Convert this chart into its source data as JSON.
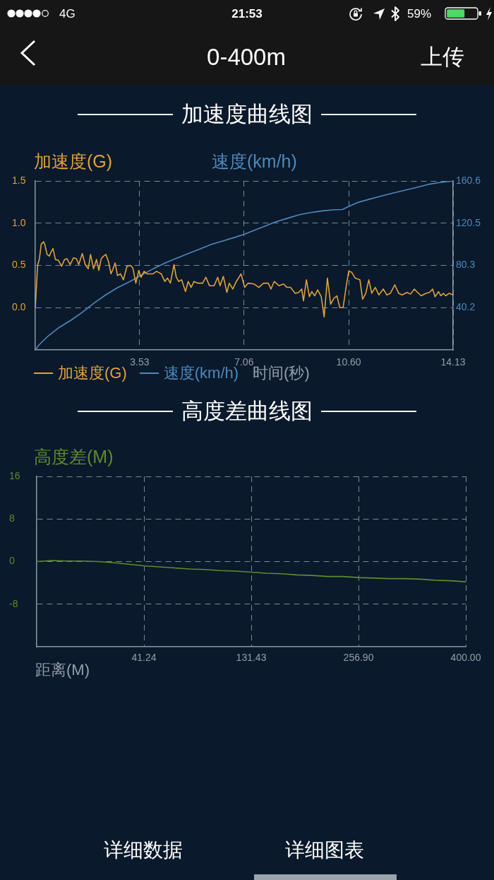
{
  "chart_data": [
    {
      "type": "line",
      "title": "加速度曲线图",
      "ylabel": "加速度(G)",
      "y2label": "速度(km/h)",
      "xlabel": "时间(秒)",
      "legend": "bottom",
      "grid": true,
      "xlim": [
        0,
        14.13
      ],
      "xticks": [
        3.53,
        7.06,
        {
          "value": 10.6,
          "label": "10.60"
        },
        14.13
      ],
      "ylim": [
        -0.5,
        1.5
      ],
      "yticks": [
        {
          "value": 0,
          "label": "0.0"
        },
        0.5,
        {
          "value": 1,
          "label": "1.0"
        },
        1.5
      ],
      "y2lim": [
        0,
        160.6
      ],
      "y2ticks": [
        40.2,
        80.3,
        120.5,
        160.6
      ],
      "series": [
        {
          "name": "加速度(G)",
          "color": "#dfa23b",
          "x": [
            0,
            0.08,
            0.14,
            0.2,
            0.28,
            0.32,
            0.4,
            0.48,
            0.52,
            0.6,
            0.68,
            0.78,
            0.89,
            0.99,
            1.07,
            1.18,
            1.29,
            1.39,
            1.47,
            1.59,
            1.69,
            1.79,
            1.87,
            1.97,
            2.07,
            2.15,
            2.23,
            2.31,
            2.39,
            2.48,
            2.56,
            2.63,
            2.7,
            2.78,
            2.88,
            2.98,
            3.1,
            3.22,
            3.3,
            3.4,
            3.5,
            3.58,
            3.68,
            3.78,
            3.98,
            4.1,
            4.26,
            4.38,
            4.47,
            4.57,
            4.69,
            4.77,
            4.85,
            4.95,
            5.08,
            5.17,
            5.27,
            5.37,
            5.49,
            5.66,
            5.77,
            5.89,
            6.05,
            6.17,
            6.25,
            6.36,
            6.48,
            6.56,
            6.68,
            6.8,
            6.96,
            7.08,
            7.2,
            7.4,
            7.56,
            7.72,
            7.88,
            7.97,
            8.08,
            8.24,
            8.4,
            8.51,
            8.63,
            8.79,
            8.91,
            9.01,
            9.07,
            9.17,
            9.27,
            9.35,
            9.45,
            9.55,
            9.67,
            9.77,
            9.88,
            9.99,
            10.1,
            10.2,
            10.3,
            10.41,
            10.52,
            10.6,
            10.7,
            10.82,
            10.98,
            11.07,
            11.18,
            11.28,
            11.38,
            11.5,
            11.62,
            11.77,
            11.89,
            12.01,
            12.16,
            12.29,
            12.41,
            12.57,
            12.69,
            12.82,
            12.93,
            13.05,
            13.21,
            13.33,
            13.44,
            13.52,
            13.64,
            13.72,
            13.8,
            13.88,
            14.0,
            14.13
          ],
          "values": [
            0,
            0.5,
            0.58,
            0.75,
            0.78,
            0.75,
            0.63,
            0.61,
            0.65,
            0.7,
            0.57,
            0.56,
            0.49,
            0.57,
            0.58,
            0.51,
            0.59,
            0.58,
            0.51,
            0.64,
            0.51,
            0.46,
            0.63,
            0.46,
            0.57,
            0.44,
            0.58,
            0.61,
            0.63,
            0.54,
            0.4,
            0.46,
            0.53,
            0.38,
            0.4,
            0.33,
            0.49,
            0.5,
            0.47,
            0.29,
            0.44,
            0.36,
            0.43,
            0.4,
            0.4,
            0.43,
            0.4,
            0.31,
            0.35,
            0.29,
            0.51,
            0.36,
            0.31,
            0.33,
            0.19,
            0.31,
            0.24,
            0.31,
            0.29,
            0.29,
            0.36,
            0.26,
            0.26,
            0.36,
            0.26,
            0.37,
            0.18,
            0.29,
            0.22,
            0.31,
            0.4,
            0.24,
            0.29,
            0.28,
            0.24,
            0.29,
            0.29,
            0.22,
            0.31,
            0.26,
            0.28,
            0.24,
            0.24,
            0.17,
            0.18,
            0.22,
            0.08,
            0.33,
            0.13,
            0.19,
            0.14,
            0.21,
            0.13,
            -0.11,
            0.35,
            0.04,
            0.11,
            0.14,
            0,
            0,
            0.26,
            0.43,
            0.42,
            0.35,
            0.33,
            0.1,
            0.17,
            0.33,
            0.17,
            0.24,
            0.15,
            0.22,
            0.15,
            0.17,
            0.27,
            0.17,
            0.15,
            0.18,
            0.16,
            0.22,
            0.18,
            0.14,
            0.17,
            0.18,
            0.22,
            0.13,
            0.19,
            0.14,
            0.17,
            0.14,
            0.17,
            0.15
          ]
        },
        {
          "name": "速度(km/h)",
          "color": "#4d89bd",
          "axis": "y2",
          "x": [
            0,
            0.12,
            0.4,
            0.8,
            1.19,
            1.59,
            1.99,
            2.39,
            2.78,
            3.18,
            3.58,
            3.98,
            4.38,
            4.77,
            5.17,
            5.57,
            5.97,
            6.36,
            6.76,
            7.08,
            7.32,
            7.72,
            8.12,
            8.51,
            8.91,
            9.31,
            9.71,
            10.1,
            10.38,
            10.58,
            10.9,
            11.3,
            11.69,
            12.09,
            12.49,
            12.89,
            13.28,
            13.68,
            14.13
          ],
          "values": [
            0,
            4.5,
            12.3,
            21.2,
            27.9,
            35.7,
            44.6,
            52.4,
            59.1,
            64.7,
            70.9,
            77.0,
            82.5,
            87.0,
            91.5,
            95.9,
            100.4,
            103.7,
            107.1,
            110.0,
            112.7,
            117.1,
            121.6,
            124.9,
            128.3,
            130.5,
            132.1,
            133.2,
            133.4,
            136.1,
            140.1,
            143.2,
            146.1,
            149.0,
            151.7,
            154.4,
            157.3,
            159.1,
            160.6
          ]
        }
      ],
      "annotations": [
        "4G",
        "21:53",
        "59%",
        "0-400m",
        "上传"
      ]
    },
    {
      "type": "line",
      "title": "高度差曲线图",
      "ylabel": "高度差(M)",
      "xlabel": "距离(M)",
      "grid": true,
      "categories": [
        null,
        null,
        null,
        null,
        null,
        null,
        null,
        "41.24",
        null,
        null,
        null,
        null,
        null,
        null,
        "131.43",
        null,
        null,
        null,
        null,
        null,
        null,
        "256.90",
        null,
        null,
        null,
        null,
        null,
        null,
        "400.00"
      ],
      "ylim": [
        -16,
        16
      ],
      "yticks": [
        16,
        8,
        0,
        -8
      ],
      "series": [
        {
          "color": "#5f8b2e",
          "values": [
            0,
            0.2,
            0.1,
            0.1,
            0,
            -0.2,
            -0.5,
            -0.8,
            -1.0,
            -1.2,
            -1.4,
            -1.5,
            -1.7,
            -1.8,
            -2.0,
            -2.2,
            -2.3,
            -2.5,
            -2.6,
            -2.8,
            -2.8,
            -3.0,
            -3.1,
            -3.2,
            -3.2,
            -3.3,
            -3.5,
            -3.6,
            -3.8
          ]
        }
      ],
      "annotations": [
        "详细数据",
        "详细图表"
      ]
    }
  ]
}
